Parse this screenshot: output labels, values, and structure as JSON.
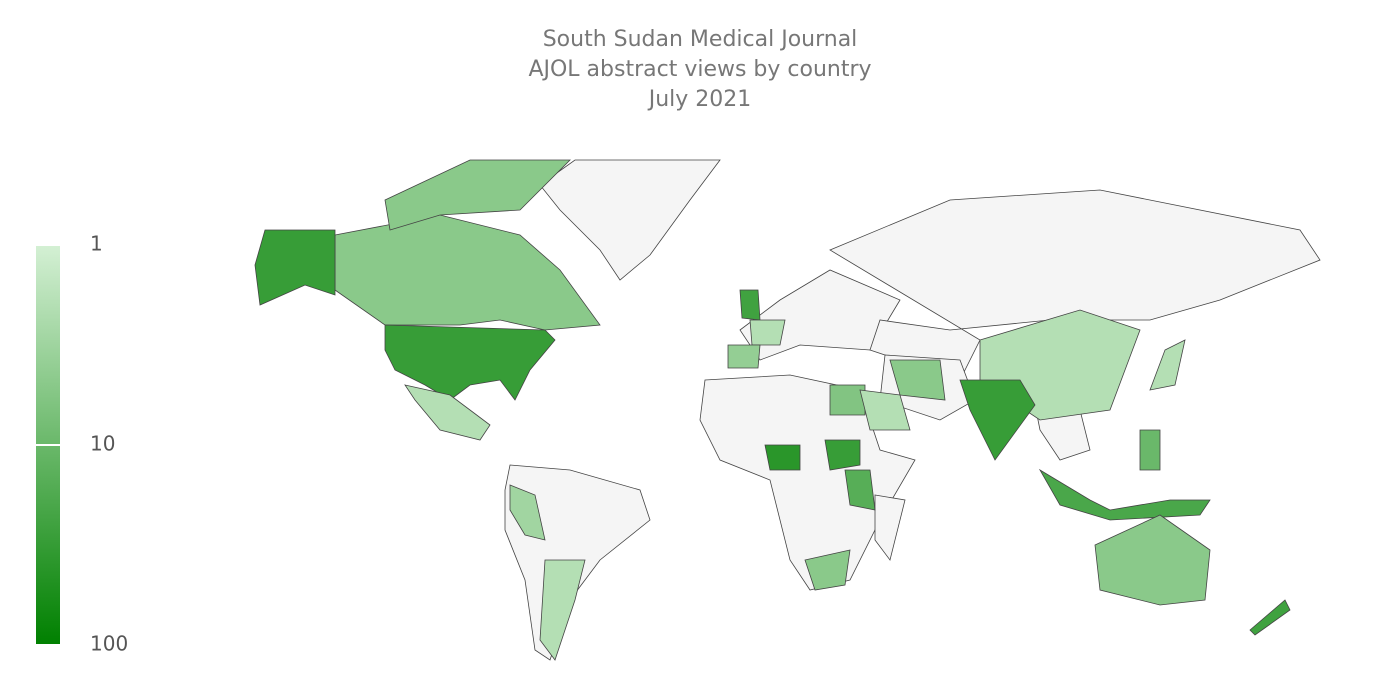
{
  "chart_data": {
    "type": "choropleth",
    "title": [
      "South Sudan Medical Journal",
      "AJOL abstract views by country",
      "July 2021"
    ],
    "values": [
      5,
      30,
      2,
      3,
      2,
      40,
      30,
      15,
      5,
      6,
      25,
      2,
      4,
      2,
      30,
      5,
      2,
      20,
      10,
      5,
      25,
      2
    ],
    "colorscale": [
      "#d4f0d4",
      "#008000"
    ],
    "log_scale": true,
    "zlim": [
      1,
      100
    ],
    "zticks": [
      1,
      10,
      100
    ],
    "no_data_color": "#f5f5f5",
    "border_color": "#444444"
  }
}
